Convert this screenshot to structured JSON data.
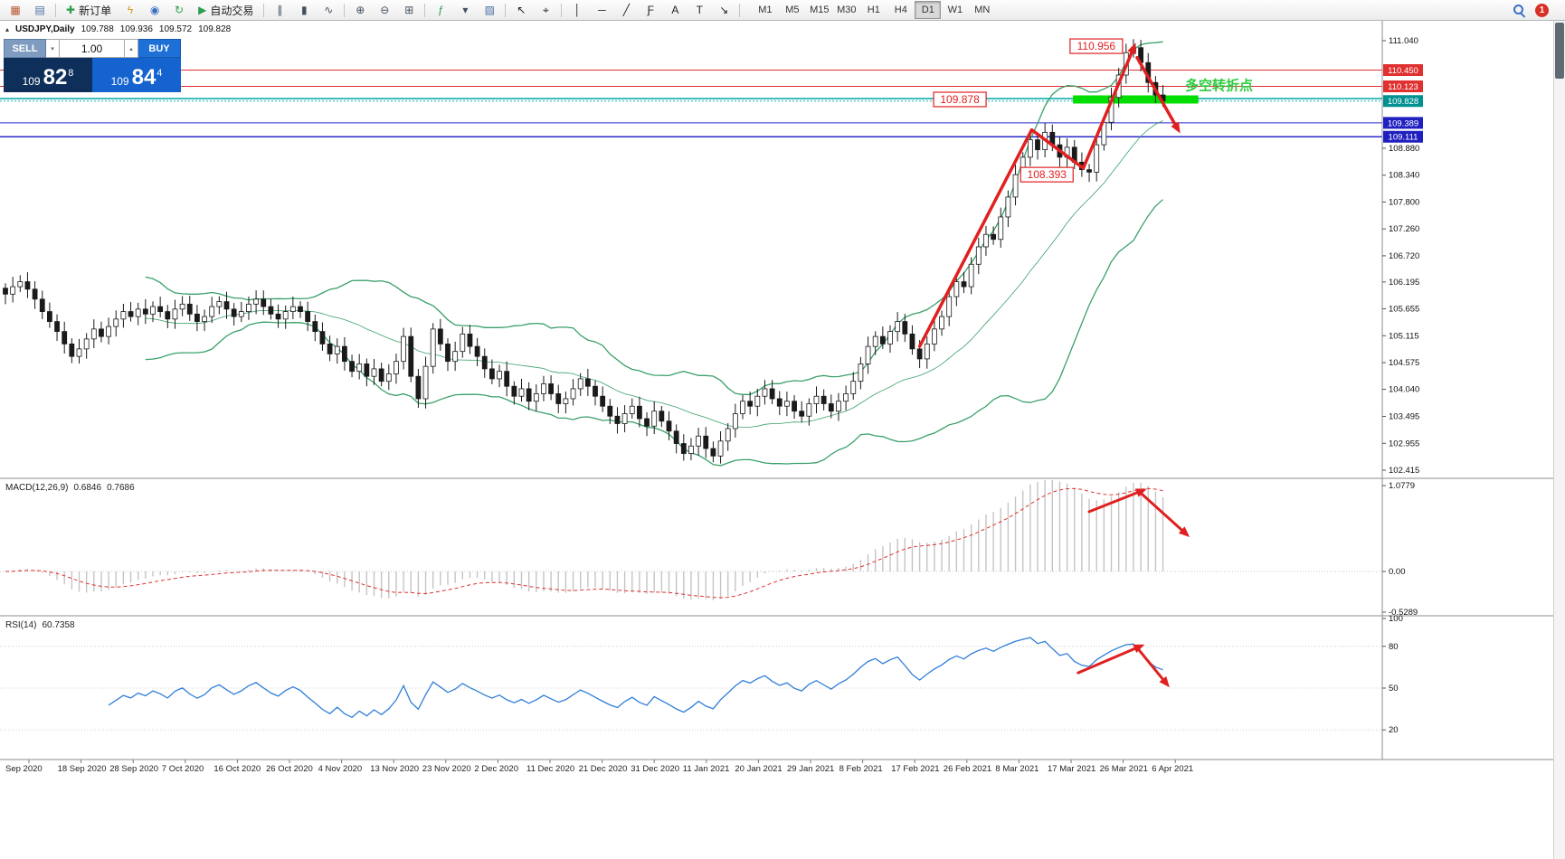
{
  "toolbar": {
    "items": [
      {
        "name": "new-chart-icon",
        "glyph": "▦",
        "color": "#b5542f"
      },
      {
        "name": "chart-profiles-icon",
        "glyph": "▤",
        "color": "#4a6fa5"
      },
      {
        "type": "sep"
      },
      {
        "name": "new-order-button",
        "glyph": "✚",
        "color": "#2e9e4f",
        "label": "新订单"
      },
      {
        "name": "expert-advisors-icon",
        "glyph": "ϟ",
        "color": "#d4a017"
      },
      {
        "name": "market-watch-icon",
        "glyph": "◉",
        "color": "#3a6fc4"
      },
      {
        "name": "refresh-icon",
        "glyph": "↻",
        "color": "#2e9e4f"
      },
      {
        "name": "auto-trading-button",
        "glyph": "▶",
        "color": "#2e9e4f",
        "label": "自动交易"
      },
      {
        "type": "sep"
      },
      {
        "name": "bar-chart-type-icon",
        "glyph": "∥",
        "color": "#44505e"
      },
      {
        "name": "candlestick-chart-type-icon",
        "glyph": "▮",
        "color": "#44505e"
      },
      {
        "name": "line-chart-type-icon",
        "glyph": "∿",
        "color": "#44505e"
      },
      {
        "type": "sep"
      },
      {
        "name": "zoom-in-icon",
        "glyph": "⊕",
        "color": "#44505e"
      },
      {
        "name": "zoom-out-icon",
        "glyph": "⊖",
        "color": "#44505e"
      },
      {
        "name": "tile-windows-icon",
        "glyph": "⊞",
        "color": "#44505e"
      },
      {
        "type": "sep"
      },
      {
        "name": "indicators-icon",
        "glyph": "ƒ",
        "color": "#2e9e4f"
      },
      {
        "name": "indicators-dropdown-icon",
        "glyph": "▾",
        "color": "#44505e"
      },
      {
        "name": "templates-icon",
        "glyph": "▨",
        "color": "#4a6fa5"
      },
      {
        "type": "sep"
      },
      {
        "name": "cursor-icon",
        "glyph": "↖",
        "color": "#222222"
      },
      {
        "name": "crosshair-icon",
        "glyph": "⌖",
        "color": "#222222"
      },
      {
        "type": "sep"
      },
      {
        "name": "vertical-line-icon",
        "glyph": "│",
        "color": "#222222"
      },
      {
        "name": "horizontal-line-icon",
        "glyph": "─",
        "color": "#222222"
      },
      {
        "name": "trendline-icon",
        "glyph": "╱",
        "color": "#222222"
      },
      {
        "name": "fibonacci-icon",
        "glyph": "Ƒ",
        "color": "#222222"
      },
      {
        "name": "text-tool-icon",
        "glyph": "A",
        "color": "#222222"
      },
      {
        "name": "label-tool-icon",
        "glyph": "T",
        "color": "#222222"
      },
      {
        "name": "arrows-tool-icon",
        "glyph": "↘",
        "color": "#222222"
      },
      {
        "type": "sep"
      }
    ],
    "timeframes": [
      "M1",
      "M5",
      "M15",
      "M30",
      "H1",
      "H4",
      "D1",
      "W1",
      "MN"
    ],
    "active_timeframe": "D1",
    "notification_count": "1"
  },
  "chart_header": {
    "collapse_glyph": "▴",
    "symbol": "USDJPY,Daily",
    "open": "109.788",
    "high": "109.936",
    "low": "109.572",
    "close": "109.828"
  },
  "quote_panel": {
    "sell_label": "SELL",
    "buy_label": "BUY",
    "volume": "1.00",
    "spin_down": "▾",
    "spin_up": "▴",
    "bid_prefix": "109",
    "bid_main": "82",
    "bid_sup": "8",
    "ask_prefix": "109",
    "ask_main": "84",
    "ask_sup": "4"
  },
  "panes": {
    "macd_name": "MACD(12,26,9)",
    "macd_value_main": "0.6846",
    "macd_value_signal": "0.7686",
    "rsi_name": "RSI(14)",
    "rsi_value": "60.7358"
  },
  "price_axis": {
    "ticks": [
      {
        "label": "111.040",
        "price": 111.04
      },
      {
        "label": "108.880",
        "price": 108.88
      },
      {
        "label": "108.340",
        "price": 108.34
      },
      {
        "label": "107.800",
        "price": 107.8
      },
      {
        "label": "107.260",
        "price": 107.26
      },
      {
        "label": "106.720",
        "price": 106.72
      },
      {
        "label": "106.195",
        "price": 106.195
      },
      {
        "label": "105.655",
        "price": 105.655
      },
      {
        "label": "105.115",
        "price": 105.115
      },
      {
        "label": "104.575",
        "price": 104.575
      },
      {
        "label": "104.040",
        "price": 104.04
      },
      {
        "label": "103.495",
        "price": 103.495
      },
      {
        "label": "102.955",
        "price": 102.955
      },
      {
        "label": "102.415",
        "price": 102.415
      }
    ],
    "badges": [
      {
        "text": "110.450",
        "price": 110.45,
        "bg": "#e03030"
      },
      {
        "text": "110.123",
        "price": 110.123,
        "bg": "#e03030"
      },
      {
        "text": "109.828",
        "price": 109.828,
        "bg": "#009090"
      },
      {
        "text": "109.389",
        "price": 109.389,
        "bg": "#2020c0"
      },
      {
        "text": "109.111",
        "price": 109.111,
        "bg": "#2020c0"
      }
    ]
  },
  "macd_axis": {
    "ticks": [
      {
        "label": "1.0779",
        "value": 1.0779
      },
      {
        "label": "0.00",
        "value": 0.0
      },
      {
        "label": "-0.5289",
        "value": -0.5289
      }
    ]
  },
  "rsi_axis": {
    "ticks": [
      {
        "label": "100",
        "value": 100
      },
      {
        "label": "80",
        "value": 80
      },
      {
        "label": "50",
        "value": 50
      },
      {
        "label": "20",
        "value": 20
      }
    ]
  },
  "time_axis": {
    "labels": [
      "Sep 2020",
      "18 Sep 2020",
      "28 Sep 2020",
      "7 Oct 2020",
      "16 Oct 2020",
      "26 Oct 2020",
      "4 Nov 2020",
      "13 Nov 2020",
      "23 Nov 2020",
      "2 Dec 2020",
      "11 Dec 2020",
      "21 Dec 2020",
      "31 Dec 2020",
      "11 Jan 2021",
      "20 Jan 2021",
      "29 Jan 2021",
      "8 Feb 2021",
      "17 Feb 2021",
      "26 Feb 2021",
      "8 Mar 2021",
      "17 Mar 2021",
      "26 Mar 2021",
      "6 Apr 2021"
    ]
  },
  "hlines": [
    {
      "name": "resistance-line-110450",
      "price": 110.45,
      "color": "#e03030",
      "width": 1
    },
    {
      "name": "resistance-line-110123",
      "price": 110.123,
      "color": "#e03030",
      "width": 1
    },
    {
      "name": "pivot-line-109878",
      "price": 109.878,
      "color": "#00a8a8",
      "width": 1.5
    },
    {
      "name": "current-price-line",
      "price": 109.828,
      "color": "#20b2aa",
      "width": 1,
      "dash": "2 2"
    },
    {
      "name": "support-line-109389",
      "price": 109.389,
      "color": "#2828cc",
      "width": 1
    },
    {
      "name": "support-line-109111",
      "price": 109.111,
      "color": "#2828cc",
      "width": 1.5
    }
  ],
  "annotations": {
    "labels": [
      {
        "name": "peak-price-label",
        "text": "110.956",
        "bar": 144.4,
        "price": 110.93
      },
      {
        "name": "pivot-price-label",
        "text": "109.878",
        "bar": 125.9,
        "price": 109.86
      },
      {
        "name": "pullback-price-label",
        "text": "108.393",
        "bar": 137.7,
        "price": 108.35
      }
    ],
    "note": {
      "name": "turning-point-note",
      "text": "多空转折点",
      "bar": 160,
      "price": 110.05,
      "color": "#2ecc40"
    },
    "zone": {
      "price": 109.86,
      "bar_start": 144.8,
      "bar_end": 161.8,
      "color": "#00dd00",
      "thickness": 9
    },
    "price_arrows": [
      {
        "points": [
          [
            124,
            104.9
          ],
          [
            139.2,
            109.25
          ],
          [
            146.2,
            108.48
          ],
          [
            152.9,
            110.85
          ]
        ]
      },
      {
        "points": [
          [
            153.5,
            110.7
          ],
          [
            158.8,
            109.32
          ]
        ]
      }
    ],
    "macd_arrows": [
      {
        "points": [
          [
            147,
            0.75
          ],
          [
            153.8,
            1.0
          ]
        ]
      },
      {
        "points": [
          [
            153.8,
            1.0
          ],
          [
            159.8,
            0.5
          ]
        ]
      }
    ],
    "rsi_arrows": [
      {
        "points": [
          [
            145.5,
            61
          ],
          [
            153.5,
            79
          ]
        ]
      },
      {
        "points": [
          [
            153.5,
            79
          ],
          [
            157.2,
            55
          ]
        ]
      }
    ]
  },
  "chart_data": {
    "type": "candlestick",
    "symbol": "USDJPY",
    "timeframe": "Daily",
    "y_range": [
      102.415,
      111.04
    ],
    "indicators": [
      {
        "name": "Bollinger Bands",
        "period": 20,
        "deviation": 2
      },
      {
        "name": "MACD",
        "fast": 12,
        "slow": 26,
        "signal": 9
      },
      {
        "name": "RSI",
        "period": 14
      }
    ],
    "closes": [
      105.95,
      106.1,
      106.2,
      106.05,
      105.85,
      105.6,
      105.4,
      105.2,
      104.95,
      104.7,
      104.85,
      105.05,
      105.25,
      105.1,
      105.3,
      105.45,
      105.6,
      105.5,
      105.65,
      105.55,
      105.7,
      105.6,
      105.45,
      105.65,
      105.75,
      105.55,
      105.4,
      105.5,
      105.7,
      105.8,
      105.65,
      105.5,
      105.6,
      105.75,
      105.85,
      105.7,
      105.55,
      105.45,
      105.6,
      105.7,
      105.6,
      105.4,
      105.2,
      104.95,
      104.75,
      104.9,
      104.6,
      104.4,
      104.55,
      104.3,
      104.45,
      104.2,
      104.35,
      104.6,
      105.1,
      104.3,
      103.85,
      104.5,
      105.25,
      104.95,
      104.6,
      104.8,
      105.15,
      104.9,
      104.7,
      104.45,
      104.25,
      104.4,
      104.1,
      103.9,
      104.05,
      103.8,
      103.95,
      104.15,
      103.95,
      103.75,
      103.85,
      104.05,
      104.25,
      104.1,
      103.9,
      103.7,
      103.5,
      103.35,
      103.55,
      103.7,
      103.45,
      103.3,
      103.6,
      103.4,
      103.2,
      102.95,
      102.75,
      102.9,
      103.1,
      102.85,
      102.7,
      103.0,
      103.25,
      103.55,
      103.8,
      103.7,
      103.9,
      104.05,
      103.85,
      103.7,
      103.8,
      103.6,
      103.5,
      103.75,
      103.9,
      103.75,
      103.6,
      103.8,
      103.95,
      104.2,
      104.55,
      104.9,
      105.1,
      104.95,
      105.2,
      105.4,
      105.15,
      104.85,
      104.65,
      104.95,
      105.25,
      105.5,
      105.9,
      106.2,
      106.1,
      106.55,
      106.9,
      107.15,
      107.05,
      107.5,
      107.9,
      108.35,
      108.7,
      109.05,
      108.85,
      109.2,
      108.95,
      108.7,
      108.9,
      108.6,
      108.45,
      108.4,
      108.95,
      109.4,
      109.9,
      110.35,
      110.8,
      110.9,
      110.6,
      110.2,
      109.95,
      109.83
    ]
  },
  "colors": {
    "up_candle": "#ffffff",
    "down_candle": "#1a1a1a",
    "candle_border": "#1a1a1a",
    "bollinger": "#3aa06a",
    "macd_hist": "#c4c4c4",
    "macd_signal": "#e03030",
    "rsi_line": "#2f7ed8",
    "annotation_red": "#e02020"
  }
}
